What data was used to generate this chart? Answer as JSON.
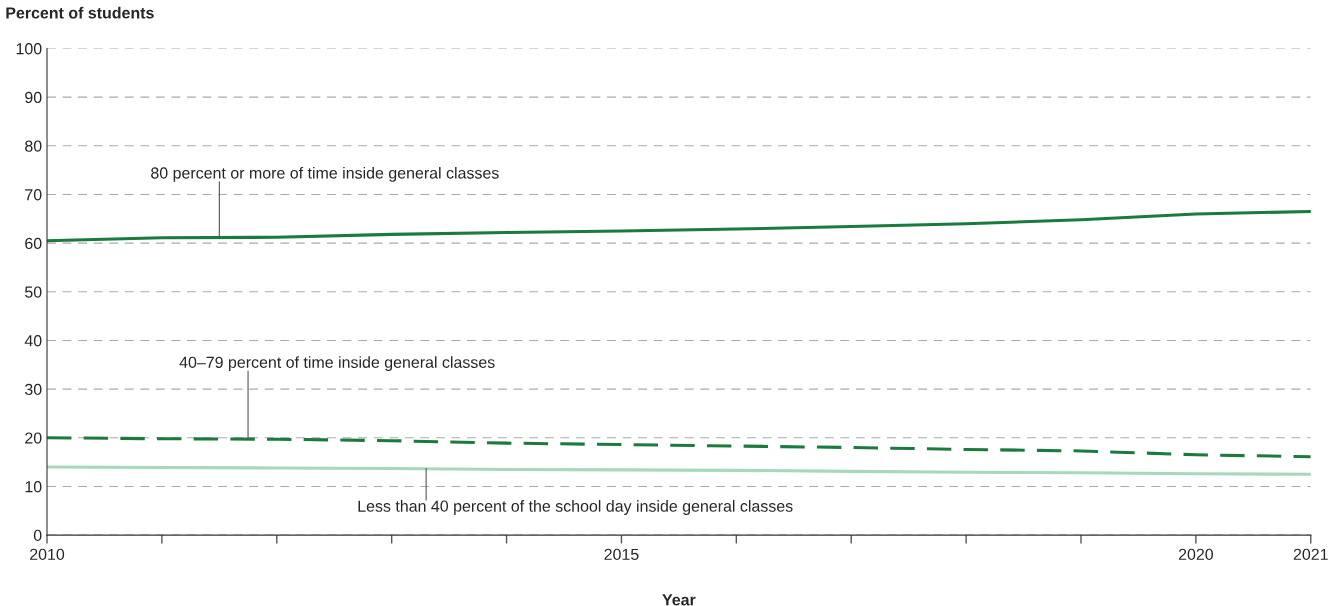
{
  "chart_data": {
    "type": "line",
    "ylabel": "Percent of students",
    "xlabel": "Year",
    "x": [
      2010,
      2011,
      2012,
      2013,
      2014,
      2015,
      2016,
      2017,
      2018,
      2019,
      2020,
      2021
    ],
    "series": [
      {
        "color": "#1b7a3e",
        "line_style": "solid",
        "values": [
          60.5,
          61.1,
          61.2,
          61.8,
          62.2,
          62.5,
          62.9,
          63.4,
          64.0,
          64.8,
          66.0,
          66.5
        ]
      },
      {
        "color": "#1b7a3e",
        "line_style": "dashed",
        "values": [
          20.0,
          19.8,
          19.7,
          19.4,
          18.9,
          18.6,
          18.3,
          18.0,
          17.6,
          17.3,
          16.5,
          16.1
        ]
      },
      {
        "color": "#a6d9bb",
        "line_style": "solid",
        "values": [
          14.0,
          13.9,
          13.8,
          13.7,
          13.5,
          13.4,
          13.3,
          13.1,
          12.9,
          12.8,
          12.6,
          12.5
        ]
      }
    ],
    "annotations": [
      {
        "text": "80 percent or more of time inside general classes",
        "x": 2011.5,
        "y": 61.1
      },
      {
        "text": "40–79 percent of time inside general classes",
        "x": 2011.75,
        "y": 19.7
      },
      {
        "text": "Less than 40 percent of the school day inside general classes",
        "x": 2013.3,
        "y": 13.7
      }
    ],
    "xlim": [
      2010,
      2021
    ],
    "xticks": [
      2010,
      {
        "value": 2011,
        "label": null
      },
      {
        "value": 2012,
        "label": null
      },
      {
        "value": 2013,
        "label": null
      },
      {
        "value": 2014,
        "label": null
      },
      2015,
      {
        "value": 2016,
        "label": null
      },
      {
        "value": 2017,
        "label": null
      },
      {
        "value": 2018,
        "label": null
      },
      {
        "value": 2019,
        "label": null
      },
      2020,
      2021
    ],
    "ylim": [
      0,
      100
    ],
    "yticks": [
      0,
      10,
      20,
      30,
      40,
      50,
      60,
      70,
      80,
      90,
      100
    ],
    "grid": "y",
    "legend": false
  }
}
